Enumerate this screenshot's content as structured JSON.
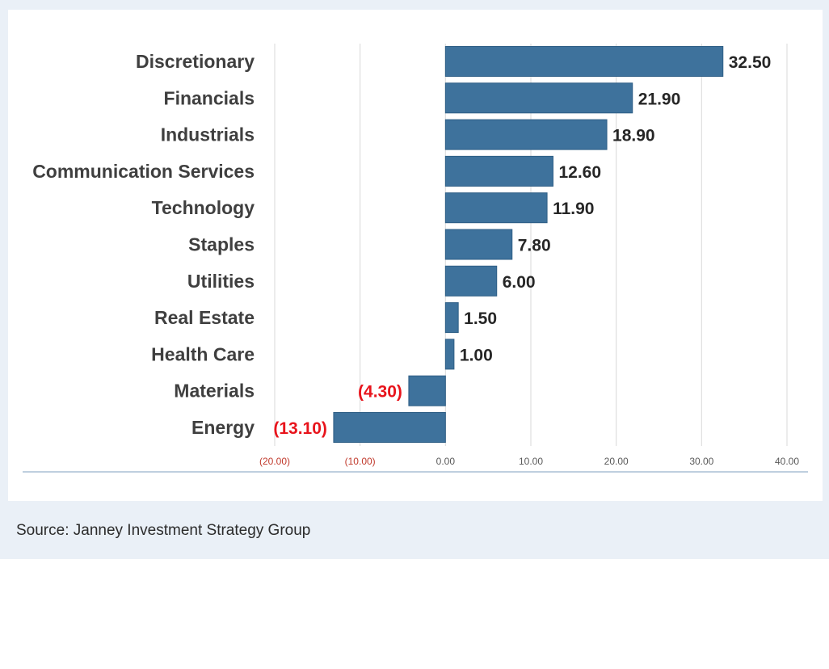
{
  "chart_data": {
    "type": "bar",
    "orientation": "horizontal",
    "categories": [
      "Discretionary",
      "Financials",
      "Industrials",
      "Communication Services",
      "Technology",
      "Staples",
      "Utilities",
      "Real Estate",
      "Health Care",
      "Materials",
      "Energy"
    ],
    "values": [
      32.5,
      21.9,
      18.9,
      12.6,
      11.9,
      7.8,
      6.0,
      1.5,
      1.0,
      -4.3,
      -13.1
    ],
    "value_labels": [
      "32.50",
      "21.90",
      "18.90",
      "12.60",
      "11.90",
      "7.80",
      "6.00",
      "1.50",
      "1.00",
      "(4.30)",
      "(13.10)"
    ],
    "x_ticks": [
      -20,
      -10,
      0,
      10,
      20,
      30,
      40
    ],
    "x_tick_labels": [
      "(20.00)",
      "(10.00)",
      "0.00",
      "10.00",
      "20.00",
      "30.00",
      "40.00"
    ],
    "xlim": [
      -20,
      40
    ],
    "grid": "vertical",
    "legend": "none",
    "colors": {
      "bar": "#3e729c",
      "negative_text": "#e8141c",
      "positive_text": "#262626",
      "tick_negative": "#c0392b",
      "tick_positive": "#595959",
      "grid": "#d9d9d9",
      "axis": "#7f9fbf"
    }
  },
  "source": {
    "text": "Source: Janney Investment Strategy Group"
  }
}
